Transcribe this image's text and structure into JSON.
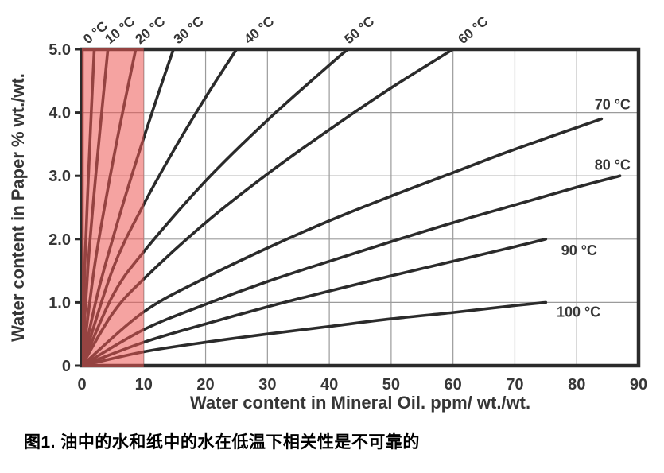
{
  "figure": {
    "caption": "图1. 油中的水和纸中的水在低温下相关性是不可靠的"
  },
  "chart_data": {
    "type": "line",
    "title": "",
    "xlabel": "Water content in Mineral Oil. ppm/ wt./wt.",
    "ylabel": "Water content in Paper % wt./wt.",
    "xlim": [
      0,
      90
    ],
    "ylim": [
      0,
      5
    ],
    "x_ticks": [
      0,
      10,
      20,
      30,
      40,
      50,
      60,
      70,
      80,
      90
    ],
    "x_tick_labels": [
      "0",
      "10",
      "20",
      "30",
      "40",
      "50",
      "60",
      "70",
      "80",
      "90"
    ],
    "y_ticks": [
      0,
      1,
      2,
      3,
      4,
      5
    ],
    "y_tick_labels": [
      "0",
      "1.0",
      "2.0",
      "3.0",
      "4.0",
      "5.0"
    ],
    "grid": true,
    "legend_position": "curve-end-labels",
    "top_label_rotation_deg": -40,
    "highlight_region": {
      "x_start": 0,
      "x_end": 10,
      "color": "rgba(236,88,83,0.55)"
    },
    "colors": {
      "curve": "#2b2b2b",
      "grid": "#9b9b9b",
      "frame": "#2b2b2b",
      "text": "#363636",
      "highlight": "rgba(236,88,83,0.55)"
    },
    "series": [
      {
        "name": "0 °C",
        "label_pos": "top",
        "label_x": 1.0,
        "points": [
          [
            0,
            0
          ],
          [
            0.5,
            1.65
          ],
          [
            1,
            2.87
          ],
          [
            1.5,
            3.97
          ],
          [
            2,
            5
          ]
        ]
      },
      {
        "name": "10 °C",
        "label_pos": "top",
        "label_x": 4.5,
        "points": [
          [
            0,
            0
          ],
          [
            1,
            1.58
          ],
          [
            2,
            2.75
          ],
          [
            3,
            3.8
          ],
          [
            4.2,
            5
          ]
        ]
      },
      {
        "name": "20 °C",
        "label_pos": "top",
        "label_x": 9.4,
        "points": [
          [
            0,
            0
          ],
          [
            2,
            1.54
          ],
          [
            4,
            2.69
          ],
          [
            6,
            3.72
          ],
          [
            8.7,
            5
          ]
        ]
      },
      {
        "name": "30 °C",
        "label_pos": "top",
        "label_x": 15.6,
        "points": [
          [
            0,
            0
          ],
          [
            2.5,
            1.12
          ],
          [
            5,
            2.01
          ],
          [
            7.5,
            2.83
          ],
          [
            10,
            3.6
          ],
          [
            12.5,
            4.34
          ],
          [
            14.8,
            5
          ]
        ]
      },
      {
        "name": "40 °C",
        "label_pos": "top",
        "label_x": 27,
        "points": [
          [
            0,
            0
          ],
          [
            5,
            1.53
          ],
          [
            10,
            2.55
          ],
          [
            15,
            3.43
          ],
          [
            20,
            4.24
          ],
          [
            25,
            5
          ]
        ]
      },
      {
        "name": "50 °C",
        "label_pos": "top",
        "label_x": 43.2,
        "points": [
          [
            0,
            0
          ],
          [
            5,
            1.11
          ],
          [
            10,
            1.8
          ],
          [
            20,
            2.92
          ],
          [
            30,
            3.88
          ],
          [
            40,
            4.75
          ],
          [
            43,
            5
          ]
        ]
      },
      {
        "name": "60 °C",
        "label_pos": "top",
        "label_x": 61.6,
        "points": [
          [
            0,
            0
          ],
          [
            5,
            0.83
          ],
          [
            10,
            1.37
          ],
          [
            20,
            2.26
          ],
          [
            30,
            3.03
          ],
          [
            40,
            3.73
          ],
          [
            50,
            4.39
          ],
          [
            60,
            5
          ]
        ]
      },
      {
        "name": "70 °C",
        "label_pos": "right",
        "label_x": 85.8,
        "label_y": 4.13,
        "points": [
          [
            0,
            0
          ],
          [
            10,
            0.85
          ],
          [
            20,
            1.39
          ],
          [
            30,
            1.86
          ],
          [
            40,
            2.29
          ],
          [
            50,
            2.68
          ],
          [
            60,
            3.05
          ],
          [
            70,
            3.42
          ],
          [
            84,
            3.9
          ]
        ]
      },
      {
        "name": "80 °C",
        "label_pos": "right",
        "label_x": 85.8,
        "label_y": 3.17,
        "points": [
          [
            0,
            0
          ],
          [
            10,
            0.57
          ],
          [
            20,
            0.97
          ],
          [
            30,
            1.33
          ],
          [
            40,
            1.65
          ],
          [
            50,
            1.96
          ],
          [
            60,
            2.26
          ],
          [
            70,
            2.54
          ],
          [
            80,
            2.82
          ],
          [
            87,
            3
          ]
        ]
      },
      {
        "name": "90 °C",
        "label_pos": "right",
        "label_x": 80.4,
        "label_y": 1.82,
        "points": [
          [
            0,
            0
          ],
          [
            10,
            0.37
          ],
          [
            20,
            0.66
          ],
          [
            30,
            0.93
          ],
          [
            40,
            1.18
          ],
          [
            50,
            1.42
          ],
          [
            60,
            1.65
          ],
          [
            70,
            1.88
          ],
          [
            75,
            2
          ]
        ]
      },
      {
        "name": "100 °C",
        "label_pos": "right",
        "label_x": 80.3,
        "label_y": 0.85,
        "points": [
          [
            0,
            0
          ],
          [
            10,
            0.22
          ],
          [
            20,
            0.37
          ],
          [
            30,
            0.5
          ],
          [
            40,
            0.62
          ],
          [
            50,
            0.74
          ],
          [
            60,
            0.84
          ],
          [
            70,
            0.95
          ],
          [
            75,
            1
          ]
        ]
      }
    ]
  }
}
